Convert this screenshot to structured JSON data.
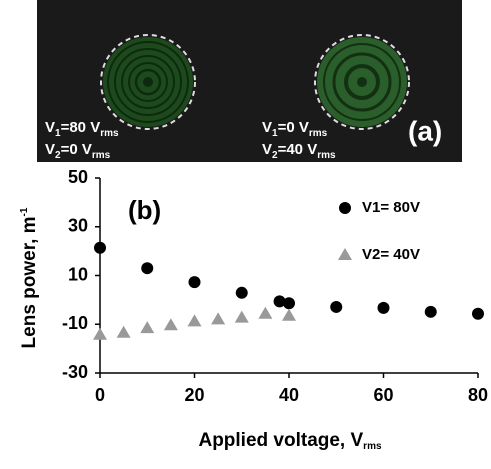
{
  "panel_a": {
    "tag": "(a)",
    "labels": [
      [
        "V",
        "1",
        "=80 V",
        "rms"
      ],
      [
        "V",
        "2",
        "=0 V",
        "rms"
      ],
      [
        "V",
        "1",
        "=0 V",
        "rms"
      ],
      [
        "V",
        "2",
        "=40 V",
        "rms"
      ]
    ]
  },
  "chart_data": {
    "type": "scatter",
    "tag": "(b)",
    "xlabel_parts": [
      "Applied voltage, V",
      "rms"
    ],
    "ylabel_parts": [
      "Lens power, m",
      "-1"
    ],
    "xlim": [
      0,
      80
    ],
    "ylim": [
      -30,
      50
    ],
    "xticks": [
      0,
      20,
      40,
      60,
      80
    ],
    "yticks": [
      -30,
      -10,
      10,
      30,
      50
    ],
    "series": [
      {
        "name": "V1= 80V",
        "color": "#000000",
        "marker": "circle",
        "x": [
          0,
          10,
          20,
          30,
          38,
          40,
          50,
          60,
          70,
          80
        ],
        "values": [
          21.4,
          13,
          7.3,
          2.9,
          -0.6,
          -1.4,
          -2.9,
          -3.3,
          -4.9,
          -5.7
        ]
      },
      {
        "name": "V2= 40V",
        "color": "#999999",
        "marker": "triangle",
        "x": [
          0,
          5,
          10,
          15,
          20,
          25,
          30,
          35,
          40
        ],
        "values": [
          -14.3,
          -13.5,
          -11.6,
          -10.4,
          -8.8,
          -8,
          -7.3,
          -5.7,
          -6.5
        ]
      }
    ]
  }
}
